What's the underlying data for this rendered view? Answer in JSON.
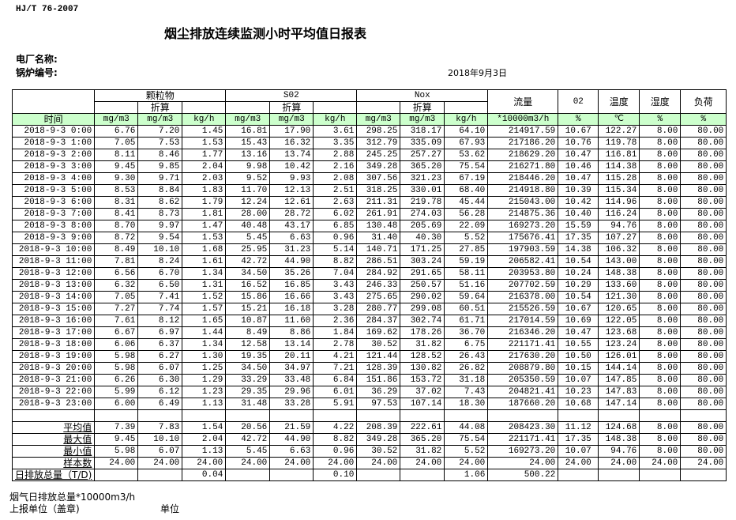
{
  "standard": "HJ/T  76-2007",
  "title": "烟尘排放连续监测小时平均值日报表",
  "plant_label": "电厂名称:",
  "boiler_label": "锅炉编号:",
  "date": "2018年9月3日",
  "header": {
    "groups": [
      "颗粒物",
      "S02",
      "Nox"
    ],
    "converted": "折算",
    "flow": "流量",
    "o2": "02",
    "temp": "温度",
    "humidity": "湿度",
    "load": "负荷",
    "time": "时间",
    "units": [
      "mg/m3",
      "mg/m3",
      "kg/h",
      "mg/m3",
      "mg/m3",
      "kg/h",
      "mg/m3",
      "mg/m3",
      "kg/h",
      "*10000m3/h",
      "%",
      "℃",
      "%",
      "%"
    ]
  },
  "rows": [
    [
      "2018-9-3 0:00",
      "6.76",
      "7.20",
      "1.45",
      "16.81",
      "17.90",
      "3.61",
      "298.25",
      "318.17",
      "64.10",
      "214917.59",
      "10.67",
      "122.27",
      "8.00",
      "80.00"
    ],
    [
      "2018-9-3 1:00",
      "7.05",
      "7.53",
      "1.53",
      "15.43",
      "16.32",
      "3.35",
      "312.79",
      "335.09",
      "67.93",
      "217186.20",
      "10.76",
      "119.78",
      "8.00",
      "80.00"
    ],
    [
      "2018-9-3 2:00",
      "8.11",
      "8.46",
      "1.77",
      "13.16",
      "13.74",
      "2.88",
      "245.25",
      "257.27",
      "53.62",
      "218629.20",
      "10.47",
      "116.81",
      "8.00",
      "80.00"
    ],
    [
      "2018-9-3 3:00",
      "9.45",
      "9.85",
      "2.04",
      "9.98",
      "10.42",
      "2.16",
      "349.28",
      "365.20",
      "75.54",
      "216271.80",
      "10.46",
      "114.38",
      "8.00",
      "80.00"
    ],
    [
      "2018-9-3 4:00",
      "9.30",
      "9.71",
      "2.03",
      "9.52",
      "9.93",
      "2.08",
      "307.56",
      "321.23",
      "67.19",
      "218446.20",
      "10.47",
      "115.28",
      "8.00",
      "80.00"
    ],
    [
      "2018-9-3 5:00",
      "8.53",
      "8.84",
      "1.83",
      "11.70",
      "12.13",
      "2.51",
      "318.25",
      "330.01",
      "68.40",
      "214918.80",
      "10.39",
      "115.34",
      "8.00",
      "80.00"
    ],
    [
      "2018-9-3 6:00",
      "8.31",
      "8.62",
      "1.79",
      "12.24",
      "12.61",
      "2.63",
      "211.31",
      "219.78",
      "45.44",
      "215043.00",
      "10.42",
      "114.96",
      "8.00",
      "80.00"
    ],
    [
      "2018-9-3 7:00",
      "8.41",
      "8.73",
      "1.81",
      "28.00",
      "28.72",
      "6.02",
      "261.91",
      "274.03",
      "56.28",
      "214875.36",
      "10.40",
      "116.24",
      "8.00",
      "80.00"
    ],
    [
      "2018-9-3 8:00",
      "8.70",
      "9.97",
      "1.47",
      "40.48",
      "43.17",
      "6.85",
      "130.48",
      "205.69",
      "22.09",
      "169273.20",
      "15.59",
      "94.76",
      "8.00",
      "80.00"
    ],
    [
      "2018-9-3 9:00",
      "8.72",
      "9.54",
      "1.53",
      "5.45",
      "6.63",
      "0.96",
      "31.40",
      "40.30",
      "5.52",
      "175676.41",
      "17.35",
      "107.27",
      "8.00",
      "80.00"
    ],
    [
      "2018-9-3 10:00",
      "8.49",
      "10.10",
      "1.68",
      "25.95",
      "31.23",
      "5.14",
      "140.71",
      "171.25",
      "27.85",
      "197903.59",
      "14.38",
      "106.32",
      "8.00",
      "80.00"
    ],
    [
      "2018-9-3 11:00",
      "7.81",
      "8.24",
      "1.61",
      "42.72",
      "44.90",
      "8.82",
      "286.51",
      "303.24",
      "59.19",
      "206582.41",
      "10.54",
      "143.00",
      "8.00",
      "80.00"
    ],
    [
      "2018-9-3 12:00",
      "6.56",
      "6.70",
      "1.34",
      "34.50",
      "35.26",
      "7.04",
      "284.92",
      "291.65",
      "58.11",
      "203953.80",
      "10.24",
      "148.38",
      "8.00",
      "80.00"
    ],
    [
      "2018-9-3 13:00",
      "6.32",
      "6.50",
      "1.31",
      "16.52",
      "16.85",
      "3.43",
      "246.33",
      "250.57",
      "51.16",
      "207702.59",
      "10.29",
      "133.60",
      "8.00",
      "80.00"
    ],
    [
      "2018-9-3 14:00",
      "7.05",
      "7.41",
      "1.52",
      "15.86",
      "16.66",
      "3.43",
      "275.65",
      "290.02",
      "59.64",
      "216378.00",
      "10.54",
      "121.30",
      "8.00",
      "80.00"
    ],
    [
      "2018-9-3 15:00",
      "7.27",
      "7.74",
      "1.57",
      "15.21",
      "16.18",
      "3.28",
      "280.77",
      "299.08",
      "60.51",
      "215526.59",
      "10.67",
      "120.65",
      "8.00",
      "80.00"
    ],
    [
      "2018-9-3 16:00",
      "7.61",
      "8.12",
      "1.65",
      "10.87",
      "11.60",
      "2.36",
      "284.37",
      "302.74",
      "61.71",
      "217014.59",
      "10.69",
      "122.05",
      "8.00",
      "80.00"
    ],
    [
      "2018-9-3 17:00",
      "6.67",
      "6.97",
      "1.44",
      "8.49",
      "8.86",
      "1.84",
      "169.62",
      "178.26",
      "36.70",
      "216346.20",
      "10.47",
      "123.68",
      "8.00",
      "80.00"
    ],
    [
      "2018-9-3 18:00",
      "6.06",
      "6.37",
      "1.34",
      "12.58",
      "13.14",
      "2.78",
      "30.52",
      "31.82",
      "6.75",
      "221171.41",
      "10.55",
      "123.24",
      "8.00",
      "80.00"
    ],
    [
      "2018-9-3 19:00",
      "5.98",
      "6.27",
      "1.30",
      "19.35",
      "20.11",
      "4.21",
      "121.44",
      "128.52",
      "26.43",
      "217630.20",
      "10.50",
      "126.01",
      "8.00",
      "80.00"
    ],
    [
      "2018-9-3 20:00",
      "5.98",
      "6.07",
      "1.25",
      "34.50",
      "34.97",
      "7.21",
      "128.39",
      "130.82",
      "26.82",
      "208879.80",
      "10.15",
      "144.14",
      "8.00",
      "80.00"
    ],
    [
      "2018-9-3 21:00",
      "6.26",
      "6.30",
      "1.29",
      "33.29",
      "33.48",
      "6.84",
      "151.86",
      "153.72",
      "31.18",
      "205350.59",
      "10.07",
      "147.85",
      "8.00",
      "80.00"
    ],
    [
      "2018-9-3 22:00",
      "5.99",
      "6.12",
      "1.23",
      "29.35",
      "29.96",
      "6.01",
      "36.29",
      "37.02",
      "7.43",
      "204821.41",
      "10.23",
      "147.83",
      "8.00",
      "80.00"
    ],
    [
      "2018-9-3 23:00",
      "6.00",
      "6.49",
      "1.13",
      "31.48",
      "33.28",
      "5.91",
      "97.53",
      "107.14",
      "18.30",
      "187660.20",
      "10.68",
      "147.14",
      "8.00",
      "80.00"
    ]
  ],
  "summary": [
    [
      "平均值",
      "7.39",
      "7.83",
      "1.54",
      "20.56",
      "21.59",
      "4.22",
      "208.39",
      "222.61",
      "44.08",
      "208423.30",
      "11.12",
      "124.68",
      "8.00",
      "80.00"
    ],
    [
      "最大值",
      "9.45",
      "10.10",
      "2.04",
      "42.72",
      "44.90",
      "8.82",
      "349.28",
      "365.20",
      "75.54",
      "221171.41",
      "17.35",
      "148.38",
      "8.00",
      "80.00"
    ],
    [
      "最小值",
      "5.98",
      "6.07",
      "1.13",
      "5.45",
      "6.63",
      "0.96",
      "30.52",
      "31.82",
      "5.52",
      "169273.20",
      "10.07",
      "94.76",
      "8.00",
      "80.00"
    ],
    [
      "样本数",
      "24.00",
      "24.00",
      "24.00",
      "24.00",
      "24.00",
      "24.00",
      "24.00",
      "24.00",
      "24.00",
      "24.00",
      "24.00",
      "24.00",
      "24.00",
      "24.00"
    ]
  ],
  "total": [
    "日排放总量（T/D)",
    "",
    "",
    "0.04",
    "",
    "",
    "0.10",
    "",
    "",
    "1.06",
    "500.22",
    "",
    "",
    "",
    ""
  ],
  "footer": {
    "flue_gas_total": "烟气日排放总量*10000m3/h",
    "reporting_unit": "上报单位（盖章)",
    "unit": "单位"
  },
  "colors": {
    "unit_row_bg": "#ccffcc"
  }
}
